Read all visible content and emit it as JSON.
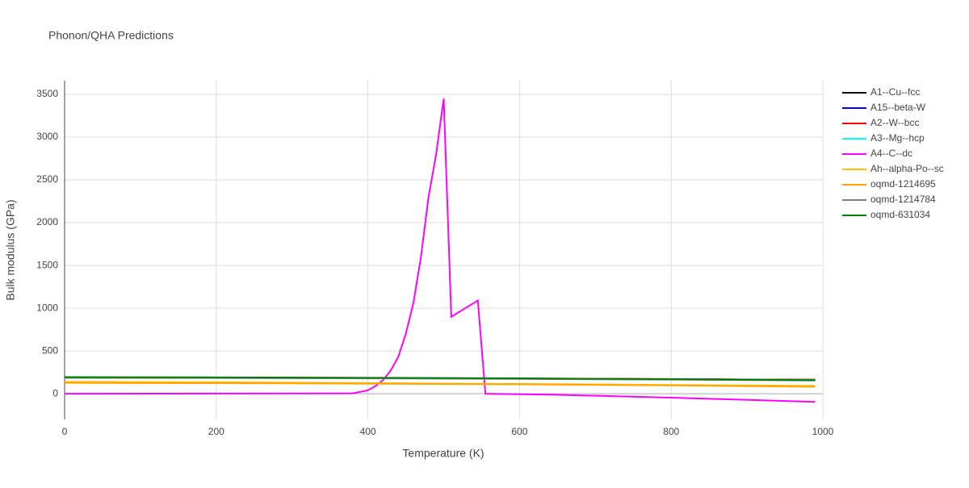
{
  "chart_data": {
    "type": "line",
    "title": "Phonon/QHA Predictions",
    "x_label": "Temperature (K)",
    "y_label": "Bulk modulus (GPa)",
    "xlim": [
      0,
      1000
    ],
    "ylim": [
      -300,
      3660
    ],
    "xticks": [
      0,
      200,
      400,
      600,
      800,
      1000
    ],
    "yticks": [
      0,
      500,
      1000,
      1500,
      2000,
      2500,
      3000,
      3500
    ],
    "grid": true,
    "series": [
      {
        "name": "A1--Cu--fcc",
        "color": "#000000",
        "x": [
          0,
          200,
          400,
          600,
          800,
          990
        ],
        "values": [
          190,
          188,
          184,
          178,
          171,
          163
        ]
      },
      {
        "name": "A15--beta-W",
        "color": "#0000ff",
        "x": [
          0,
          200,
          400,
          600,
          800,
          990
        ],
        "values": [
          189,
          187,
          183,
          177,
          170,
          162
        ]
      },
      {
        "name": "A2--W--bcc",
        "color": "#ff0000",
        "x": [
          0,
          200,
          400,
          600,
          800,
          990
        ],
        "values": [
          191,
          189,
          185,
          179,
          172,
          164
        ]
      },
      {
        "name": "A3--Mg--hcp",
        "color": "#00ffff",
        "x": [
          0,
          200,
          400,
          600,
          800,
          990
        ],
        "values": [
          188,
          186,
          182,
          176,
          169,
          161
        ]
      },
      {
        "name": "A4--C--dc",
        "color": "#ff00ff",
        "x": [
          0,
          380,
          400,
          410,
          420,
          430,
          440,
          450,
          460,
          470,
          480,
          490,
          500,
          510,
          545,
          555,
          640,
          800,
          990
        ],
        "values": [
          0,
          5,
          40,
          90,
          160,
          270,
          430,
          700,
          1060,
          1600,
          2300,
          2800,
          3450,
          900,
          1090,
          0,
          -10,
          -45,
          -95
        ]
      },
      {
        "name": "Ah--alpha-Po--sc",
        "color": "#ffbf00",
        "x": [
          0,
          200,
          400,
          600,
          800,
          990
        ],
        "values": [
          140,
          135,
          125,
          115,
          103,
          92
        ]
      },
      {
        "name": "oqmd-1214695",
        "color": "#ffa500",
        "x": [
          0,
          200,
          400,
          600,
          800,
          990
        ],
        "values": [
          128,
          124,
          118,
          110,
          98,
          82
        ]
      },
      {
        "name": "oqmd-1214784",
        "color": "#808080",
        "x": [
          0,
          200,
          400,
          600,
          800,
          990
        ],
        "values": [
          186,
          184,
          180,
          174,
          165,
          155
        ]
      },
      {
        "name": "oqmd-631034",
        "color": "#008000",
        "x": [
          0,
          200,
          400,
          600,
          800,
          990
        ],
        "values": [
          195,
          192,
          187,
          180,
          170,
          160
        ]
      }
    ]
  }
}
